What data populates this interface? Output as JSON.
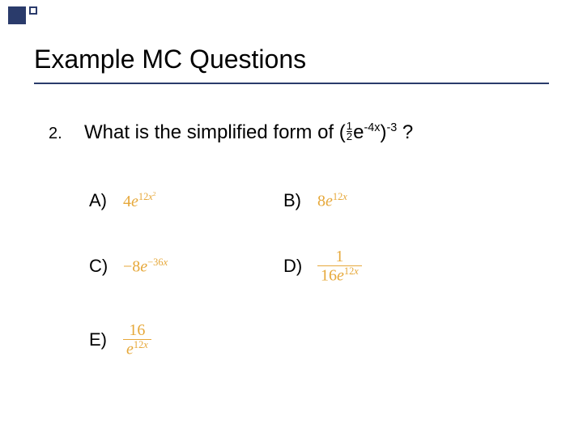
{
  "colors": {
    "accent": "#2a3b6b",
    "math": "#e6a83a",
    "text": "#000000",
    "background": "#ffffff"
  },
  "title": "Example MC Questions",
  "question": {
    "number": "2.",
    "prefix": "What is the simplified form of (",
    "frac_num": "1",
    "frac_den": "2",
    "base": "e",
    "exp1": "-4x",
    "close": ")",
    "exp2": "-3",
    "suffix": " ?"
  },
  "choices": {
    "a_label": "A)",
    "a_coef": "4",
    "a_e": "e",
    "a_exp": "12",
    "a_var": "x",
    "a_supexp": "2",
    "b_label": "B)",
    "b_coef": "8",
    "b_e": "e",
    "b_exp": "12",
    "b_var": "x",
    "c_label": "C)",
    "c_coef": "−8",
    "c_e": "e",
    "c_exp": "−36",
    "c_var": "x",
    "d_label": "D)",
    "d_num": "1",
    "d_den_coef": "16",
    "d_e": "e",
    "d_exp": "12",
    "d_var": "x",
    "e_label": "E)",
    "e_num": "16",
    "e_e": "e",
    "e_exp": "12",
    "e_var": "x"
  }
}
